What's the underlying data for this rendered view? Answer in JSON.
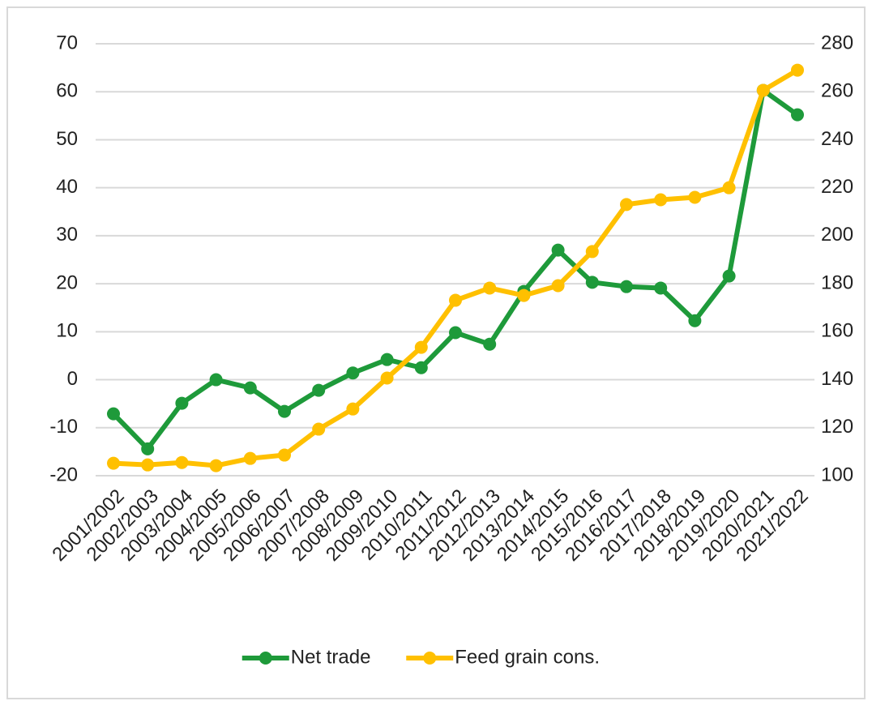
{
  "chart_data": {
    "type": "line",
    "categories": [
      "2001/2002",
      "2002/2003",
      "2003/2004",
      "2004/2005",
      "2005/2006",
      "2006/2007",
      "2007/2008",
      "2008/2009",
      "2009/2010",
      "2010/2011",
      "2011/2012",
      "2012/2013",
      "2013/2014",
      "2014/2015",
      "2015/2016",
      "2016/2017",
      "2017/2018",
      "2018/2019",
      "2019/2020",
      "2020/2021",
      "2021/2022"
    ],
    "series": [
      {
        "name": "Net trade",
        "color": "#1e9a3a",
        "values": [
          -7.1,
          -14.4,
          -4.9,
          0,
          -1.7,
          -6.6,
          -2.2,
          1.4,
          4.2,
          2.5,
          9.8,
          7.4,
          18.4,
          27,
          20.3,
          19.4,
          19.1,
          12.3,
          21.6,
          60.3,
          55.2
        ]
      },
      {
        "name": "Feed grain cons.",
        "color": "#ffc000",
        "axis": "y2",
        "values": [
          105.2,
          104.5,
          105.5,
          104.2,
          107.2,
          108.6,
          119.4,
          127.8,
          140.7,
          153.5,
          173.1,
          178.2,
          175.1,
          179.2,
          193.4,
          213,
          215,
          216,
          220,
          260.6,
          269
        ]
      }
    ],
    "ylim": [
      -20,
      70
    ],
    "yticks": [
      -20,
      -10,
      0,
      10,
      20,
      30,
      40,
      50,
      60,
      70
    ],
    "y2lim": [
      100,
      280
    ],
    "y2ticks": [
      100,
      120,
      140,
      160,
      180,
      200,
      220,
      240,
      260,
      280
    ],
    "grid": true,
    "legend": "bottom"
  }
}
